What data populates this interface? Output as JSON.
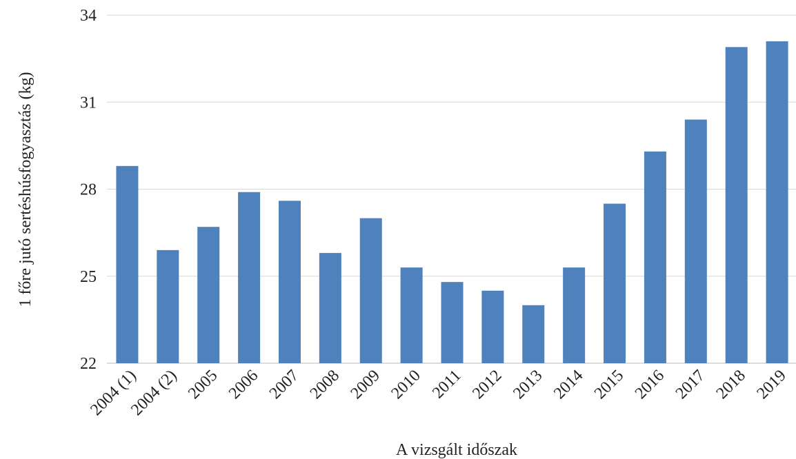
{
  "chart_data": {
    "type": "bar",
    "title": "",
    "xlabel": "A vizsgált időszak",
    "ylabel": "1 főre jutó sertéshúsfogyasztás  (kg)",
    "ylim": [
      22,
      34
    ],
    "yticks": [
      22,
      25,
      28,
      31,
      34
    ],
    "grid": true,
    "bar_color": "#4f81bd",
    "categories": [
      "2004 (1)",
      "2004 (2)",
      "2005",
      "2006",
      "2007",
      "2008",
      "2009",
      "2010",
      "2011",
      "2012",
      "2013",
      "2014",
      "2015",
      "2016",
      "2017",
      "2018",
      "2019"
    ],
    "values": [
      28.8,
      25.9,
      26.7,
      27.9,
      27.6,
      25.8,
      27.0,
      25.3,
      24.8,
      24.5,
      24.0,
      25.3,
      27.5,
      29.3,
      30.4,
      32.9,
      33.1
    ]
  }
}
